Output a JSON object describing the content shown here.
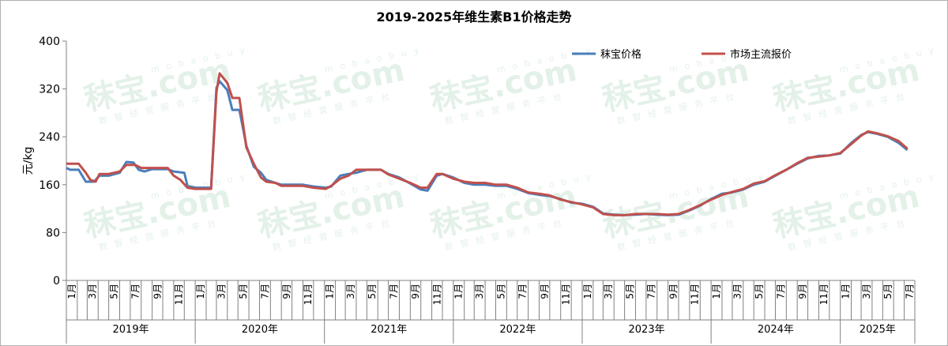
{
  "chart_data": {
    "type": "line",
    "title": "2019-2025年维生素B1价格走势",
    "ylabel": "元/kg",
    "ylim": [
      0,
      400
    ],
    "yticks": [
      "0",
      "80",
      "160",
      "240",
      "320",
      "400"
    ],
    "grid": false,
    "legend_position": "top-right",
    "x_start": "2019-01",
    "x_end": "2025-07",
    "years": [
      "2019年",
      "2020年",
      "2021年",
      "2022年",
      "2023年",
      "2024年",
      "2025年"
    ],
    "month_labels": [
      "1月",
      "3月",
      "5月",
      "7月",
      "9月",
      "11月"
    ],
    "series": [
      {
        "name": "秣宝价格",
        "color": "#4a7ebb",
        "points": [
          [
            "2019-01-01",
            188
          ],
          [
            "2019-01-12",
            185
          ],
          [
            "2019-02-05",
            185
          ],
          [
            "2019-02-25",
            165
          ],
          [
            "2019-03-20",
            165
          ],
          [
            "2019-04-05",
            175
          ],
          [
            "2019-05-01",
            175
          ],
          [
            "2019-06-01",
            180
          ],
          [
            "2019-06-20",
            198
          ],
          [
            "2019-07-10",
            197
          ],
          [
            "2019-07-25",
            185
          ],
          [
            "2019-08-10",
            182
          ],
          [
            "2019-09-01",
            186
          ],
          [
            "2019-10-15",
            186
          ],
          [
            "2019-11-01",
            182
          ],
          [
            "2019-12-01",
            180
          ],
          [
            "2019-12-10",
            158
          ],
          [
            "2020-01-01",
            155
          ],
          [
            "2020-02-15",
            155
          ],
          [
            "2020-03-01",
            322
          ],
          [
            "2020-03-10",
            333
          ],
          [
            "2020-04-01",
            318
          ],
          [
            "2020-04-15",
            285
          ],
          [
            "2020-05-05",
            285
          ],
          [
            "2020-05-25",
            225
          ],
          [
            "2020-06-15",
            190
          ],
          [
            "2020-07-05",
            180
          ],
          [
            "2020-07-20",
            168
          ],
          [
            "2020-08-15",
            163
          ],
          [
            "2020-09-01",
            160
          ],
          [
            "2020-10-01",
            160
          ],
          [
            "2020-11-01",
            160
          ],
          [
            "2020-12-01",
            157
          ],
          [
            "2021-01-05",
            155
          ],
          [
            "2021-01-20",
            157
          ],
          [
            "2021-02-15",
            175
          ],
          [
            "2021-03-10",
            178
          ],
          [
            "2021-04-01",
            180
          ],
          [
            "2021-05-01",
            185
          ],
          [
            "2021-06-10",
            185
          ],
          [
            "2021-07-01",
            178
          ],
          [
            "2021-08-01",
            172
          ],
          [
            "2021-09-01",
            162
          ],
          [
            "2021-10-01",
            152
          ],
          [
            "2021-10-20",
            150
          ],
          [
            "2021-11-15",
            175
          ],
          [
            "2021-12-01",
            178
          ],
          [
            "2022-01-01",
            172
          ],
          [
            "2022-02-01",
            163
          ],
          [
            "2022-03-01",
            160
          ],
          [
            "2022-04-01",
            160
          ],
          [
            "2022-05-01",
            158
          ],
          [
            "2022-06-01",
            158
          ],
          [
            "2022-07-01",
            153
          ],
          [
            "2022-08-01",
            146
          ],
          [
            "2022-09-01",
            143
          ],
          [
            "2022-10-01",
            141
          ],
          [
            "2022-11-01",
            136
          ],
          [
            "2022-12-01",
            130
          ],
          [
            "2023-01-01",
            128
          ],
          [
            "2023-02-01",
            123
          ],
          [
            "2023-03-01",
            112
          ],
          [
            "2023-04-01",
            110
          ],
          [
            "2023-05-01",
            109
          ],
          [
            "2023-06-01",
            110
          ],
          [
            "2023-07-01",
            111
          ],
          [
            "2023-08-01",
            110
          ],
          [
            "2023-09-01",
            109
          ],
          [
            "2023-10-01",
            110
          ],
          [
            "2023-11-01",
            117
          ],
          [
            "2023-12-01",
            125
          ],
          [
            "2024-01-01",
            136
          ],
          [
            "2024-02-01",
            145
          ],
          [
            "2024-03-01",
            147
          ],
          [
            "2024-04-01",
            152
          ],
          [
            "2024-05-01",
            160
          ],
          [
            "2024-06-01",
            165
          ],
          [
            "2024-07-01",
            175
          ],
          [
            "2024-08-01",
            185
          ],
          [
            "2024-09-01",
            195
          ],
          [
            "2024-10-01",
            204
          ],
          [
            "2024-11-01",
            208
          ],
          [
            "2024-12-01",
            209
          ],
          [
            "2025-01-01",
            212
          ],
          [
            "2025-02-01",
            230
          ],
          [
            "2025-03-01",
            243
          ],
          [
            "2025-03-20",
            248
          ],
          [
            "2025-04-15",
            245
          ],
          [
            "2025-05-15",
            240
          ],
          [
            "2025-06-15",
            230
          ],
          [
            "2025-07-10",
            218
          ]
        ]
      },
      {
        "name": "市场主流报价",
        "color": "#c0504d",
        "points": [
          [
            "2019-01-01",
            195
          ],
          [
            "2019-02-05",
            195
          ],
          [
            "2019-02-25",
            180
          ],
          [
            "2019-03-10",
            168
          ],
          [
            "2019-03-25",
            165
          ],
          [
            "2019-04-05",
            178
          ],
          [
            "2019-05-01",
            178
          ],
          [
            "2019-06-01",
            182
          ],
          [
            "2019-06-20",
            193
          ],
          [
            "2019-07-15",
            193
          ],
          [
            "2019-08-01",
            188
          ],
          [
            "2019-09-01",
            188
          ],
          [
            "2019-10-15",
            188
          ],
          [
            "2019-11-01",
            175
          ],
          [
            "2019-11-20",
            168
          ],
          [
            "2019-12-10",
            155
          ],
          [
            "2020-01-01",
            153
          ],
          [
            "2020-02-15",
            153
          ],
          [
            "2020-03-01",
            315
          ],
          [
            "2020-03-10",
            346
          ],
          [
            "2020-04-01",
            330
          ],
          [
            "2020-04-15",
            305
          ],
          [
            "2020-05-05",
            305
          ],
          [
            "2020-05-25",
            222
          ],
          [
            "2020-06-15",
            195
          ],
          [
            "2020-07-05",
            172
          ],
          [
            "2020-07-20",
            165
          ],
          [
            "2020-08-15",
            163
          ],
          [
            "2020-09-01",
            158
          ],
          [
            "2020-10-01",
            158
          ],
          [
            "2020-11-01",
            158
          ],
          [
            "2020-12-01",
            155
          ],
          [
            "2021-01-05",
            153
          ],
          [
            "2021-01-20",
            158
          ],
          [
            "2021-02-15",
            170
          ],
          [
            "2021-03-10",
            175
          ],
          [
            "2021-04-01",
            185
          ],
          [
            "2021-05-01",
            185
          ],
          [
            "2021-06-10",
            185
          ],
          [
            "2021-07-01",
            177
          ],
          [
            "2021-08-01",
            170
          ],
          [
            "2021-09-01",
            163
          ],
          [
            "2021-10-01",
            155
          ],
          [
            "2021-10-20",
            155
          ],
          [
            "2021-11-15",
            178
          ],
          [
            "2021-12-01",
            178
          ],
          [
            "2022-01-01",
            170
          ],
          [
            "2022-02-01",
            165
          ],
          [
            "2022-03-01",
            163
          ],
          [
            "2022-04-01",
            163
          ],
          [
            "2022-05-01",
            160
          ],
          [
            "2022-06-01",
            160
          ],
          [
            "2022-07-01",
            155
          ],
          [
            "2022-08-01",
            147
          ],
          [
            "2022-09-01",
            145
          ],
          [
            "2022-10-01",
            142
          ],
          [
            "2022-11-01",
            135
          ],
          [
            "2022-12-01",
            131
          ],
          [
            "2023-01-01",
            127
          ],
          [
            "2023-02-01",
            122
          ],
          [
            "2023-03-01",
            111
          ],
          [
            "2023-04-01",
            109
          ],
          [
            "2023-05-01",
            109
          ],
          [
            "2023-06-01",
            111
          ],
          [
            "2023-07-01",
            111
          ],
          [
            "2023-08-01",
            111
          ],
          [
            "2023-09-01",
            110
          ],
          [
            "2023-10-01",
            111
          ],
          [
            "2023-11-01",
            118
          ],
          [
            "2023-12-01",
            126
          ],
          [
            "2024-01-01",
            135
          ],
          [
            "2024-02-01",
            143
          ],
          [
            "2024-03-01",
            148
          ],
          [
            "2024-04-01",
            153
          ],
          [
            "2024-05-01",
            162
          ],
          [
            "2024-06-01",
            166
          ],
          [
            "2024-07-01",
            176
          ],
          [
            "2024-08-01",
            185
          ],
          [
            "2024-09-01",
            196
          ],
          [
            "2024-10-01",
            205
          ],
          [
            "2024-11-01",
            207
          ],
          [
            "2024-12-01",
            209
          ],
          [
            "2025-01-01",
            213
          ],
          [
            "2025-02-01",
            228
          ],
          [
            "2025-03-01",
            242
          ],
          [
            "2025-03-20",
            249
          ],
          [
            "2025-04-15",
            246
          ],
          [
            "2025-05-15",
            241
          ],
          [
            "2025-06-15",
            233
          ],
          [
            "2025-07-10",
            220
          ]
        ]
      }
    ]
  },
  "watermark": {
    "main": "秣宝.com",
    "top": "mobaobuy",
    "sub": "数智经营服务平台"
  }
}
